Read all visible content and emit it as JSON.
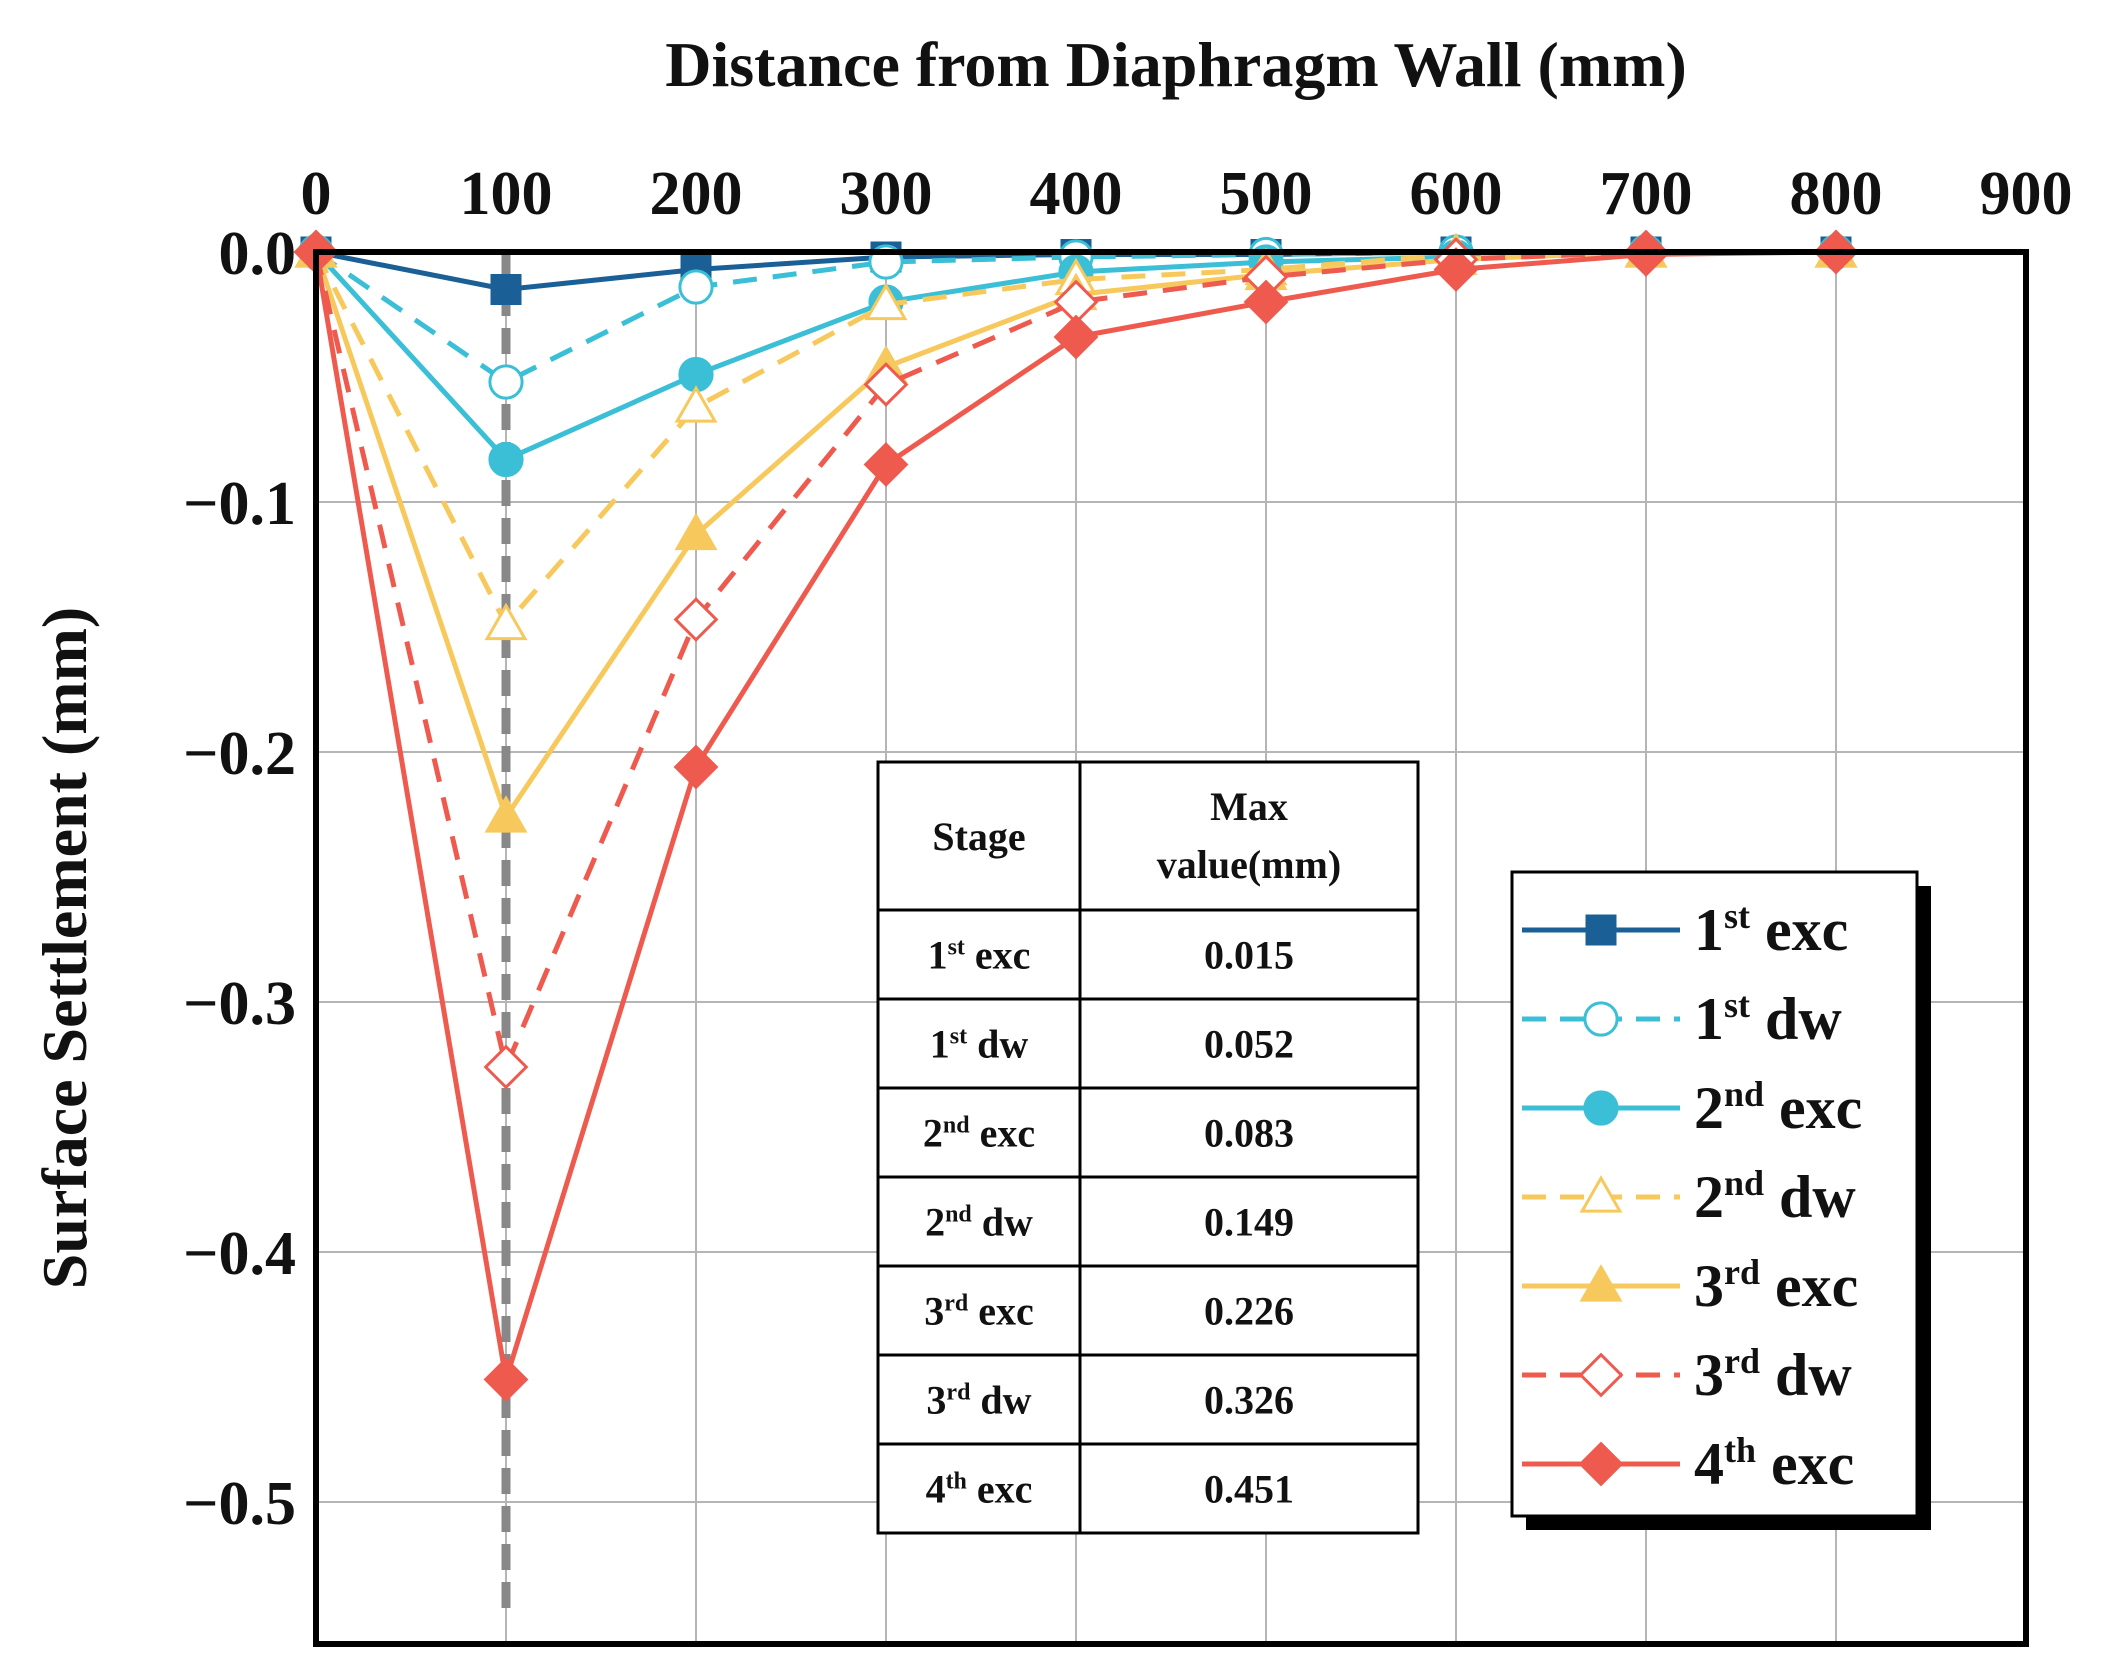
{
  "chart_data": {
    "type": "line",
    "xlabel": "Distance from Diaphragm Wall (mm)",
    "ylabel": "Surface Settlement (mm)",
    "xlim": [
      0,
      900
    ],
    "ylim": [
      -0.55,
      0.0
    ],
    "x_ticks": [
      "0",
      "100",
      "200",
      "300",
      "400",
      "500",
      "600",
      "700",
      "800",
      "900"
    ],
    "y_ticks": [
      "0.0",
      "−0.1",
      "−0.2",
      "−0.3",
      "−0.4",
      "−0.5"
    ],
    "x_axis_position": "top",
    "grid": true,
    "reference_line_x": 100,
    "legend_position": "right",
    "x": [
      0,
      100,
      200,
      300,
      400,
      500,
      600,
      700,
      800
    ],
    "series": [
      {
        "name_base": "1",
        "name_sup": "st",
        "name_rest": " exc",
        "color": "#1a5f96",
        "dash": false,
        "marker": "square",
        "filled": true,
        "values": [
          0,
          -0.015,
          -0.007,
          -0.002,
          -0.001,
          -0.001,
          0,
          0,
          0
        ]
      },
      {
        "name_base": "1",
        "name_sup": "st",
        "name_rest": " dw",
        "color": "#3bbfd6",
        "dash": true,
        "marker": "circle",
        "filled": false,
        "values": [
          0,
          -0.052,
          -0.014,
          -0.004,
          -0.002,
          -0.001,
          0,
          0,
          0
        ]
      },
      {
        "name_base": "2",
        "name_sup": "nd",
        "name_rest": " exc",
        "color": "#3bbfd6",
        "dash": false,
        "marker": "circle",
        "filled": true,
        "values": [
          0,
          -0.083,
          -0.049,
          -0.02,
          -0.008,
          -0.004,
          -0.002,
          0,
          0
        ]
      },
      {
        "name_base": "2",
        "name_sup": "nd",
        "name_rest": " dw",
        "color": "#f7c95c",
        "dash": true,
        "marker": "triangle",
        "filled": false,
        "values": [
          0,
          -0.149,
          -0.062,
          -0.021,
          -0.011,
          -0.007,
          -0.001,
          0,
          0
        ]
      },
      {
        "name_base": "3",
        "name_sup": "rd",
        "name_rest": " exc",
        "color": "#f7c95c",
        "dash": false,
        "marker": "triangle",
        "filled": true,
        "values": [
          0,
          -0.226,
          -0.113,
          -0.046,
          -0.017,
          -0.009,
          -0.003,
          0,
          0
        ]
      },
      {
        "name_base": "3",
        "name_sup": "rd",
        "name_rest": " dw",
        "color": "#ef5a4e",
        "dash": true,
        "marker": "diamond",
        "filled": false,
        "values": [
          0,
          -0.326,
          -0.147,
          -0.053,
          -0.02,
          -0.01,
          -0.003,
          0,
          0
        ]
      },
      {
        "name_base": "4",
        "name_sup": "th",
        "name_rest": " exc",
        "color": "#ef5a4e",
        "dash": false,
        "marker": "diamond",
        "filled": true,
        "values": [
          0,
          -0.451,
          -0.206,
          -0.085,
          -0.034,
          -0.02,
          -0.007,
          -0.001,
          0
        ]
      }
    ],
    "table": {
      "header_stage": "Stage",
      "header_max_line1": "Max",
      "header_max_line2": "value(mm)",
      "rows": [
        {
          "base": "1",
          "sup": "st",
          "rest": " exc",
          "value": "0.015"
        },
        {
          "base": "1",
          "sup": "st",
          "rest": " dw",
          "value": "0.052"
        },
        {
          "base": "2",
          "sup": "nd",
          "rest": " exc",
          "value": "0.083"
        },
        {
          "base": "2",
          "sup": "nd",
          "rest": " dw",
          "value": "0.149"
        },
        {
          "base": "3",
          "sup": "rd",
          "rest": " exc",
          "value": "0.226"
        },
        {
          "base": "3",
          "sup": "rd",
          "rest": " dw",
          "value": "0.326"
        },
        {
          "base": "4",
          "sup": "th",
          "rest": " exc",
          "value": "0.451"
        }
      ]
    }
  }
}
